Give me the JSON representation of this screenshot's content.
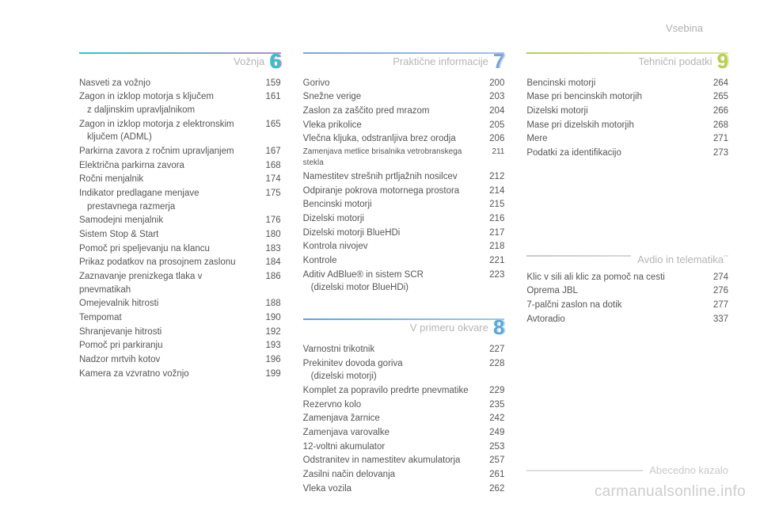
{
  "header": {
    "title": "Vsebina"
  },
  "columns": [
    {
      "sections": [
        {
          "number": "6",
          "title": "Vožnja",
          "rule_gradient": [
            "#2cc5c9",
            "#b48fc6"
          ],
          "num_color": "#2cc5c9",
          "num_shadow": "#b48fc6",
          "entries": [
            {
              "label": "Nasveti za vožnjo",
              "page": "159"
            },
            {
              "label": "Zagon in izklop motorja s ključem",
              "sub": "z daljinskim upravljalnikom",
              "page": "161"
            },
            {
              "label": "Zagon in izklop motorja z elektronskim",
              "sub": "ključem (ADML)",
              "page": "165"
            },
            {
              "label": "Parkirna zavora z ročnim upravljanjem",
              "page": "167"
            },
            {
              "label": "Električna parkirna zavora",
              "page": "168"
            },
            {
              "label": "Ročni menjalnik",
              "page": "174"
            },
            {
              "label": "Indikator predlagane menjave",
              "sub": "prestavnega razmerja",
              "page": "175"
            },
            {
              "label": "Samodejni menjalnik",
              "page": "176"
            },
            {
              "label": "Sistem Stop & Start",
              "page": "180"
            },
            {
              "label": "Pomoč pri speljevanju na klancu",
              "page": "183"
            },
            {
              "label": "Prikaz podatkov na prosojnem zaslonu",
              "page": "184"
            },
            {
              "label": "Zaznavanje prenizkega tlaka v pnevmatikah",
              "page": "186"
            },
            {
              "label": "Omejevalnik hitrosti",
              "page": "188"
            },
            {
              "label": "Tempomat",
              "page": "190"
            },
            {
              "label": "Shranjevanje hitrosti",
              "page": "192"
            },
            {
              "label": "Pomoč pri parkiranju",
              "page": "193"
            },
            {
              "label": "Nadzor mrtvih kotov",
              "page": "196"
            },
            {
              "label": "Kamera za vzvratno vožnjo",
              "page": "199"
            }
          ]
        }
      ]
    },
    {
      "sections": [
        {
          "number": "7",
          "title": "Praktične informacije",
          "rule_gradient": [
            "#7aa6d8",
            "#a7c2e4"
          ],
          "num_color": "#7aa6d8",
          "num_shadow": "#c8d9ef",
          "entries": [
            {
              "label": "Gorivo",
              "page": "200"
            },
            {
              "label": "Snežne verige",
              "page": "203"
            },
            {
              "label": "Zaslon za zaščito pred mrazom",
              "page": "204"
            },
            {
              "label": "Vleka prikolice",
              "page": "205"
            },
            {
              "label": "Vlečna kljuka, odstranljiva brez orodja",
              "page": "206"
            },
            {
              "label": "Zamenjava metlice brisalnika vetrobranskega stekla",
              "page": "211",
              "small": true
            },
            {
              "label": "Namestitev strešnih prtljažnih nosilcev",
              "page": "212"
            },
            {
              "label": "Odpiranje pokrova motornega prostora",
              "page": "214"
            },
            {
              "label": "Bencinski motorji",
              "page": "215"
            },
            {
              "label": "Dizelski motorji",
              "page": "216"
            },
            {
              "label": "Dizelski motorji BlueHDi",
              "page": "217"
            },
            {
              "label": "Kontrola nivojev",
              "page": "218"
            },
            {
              "label": "Kontrole",
              "page": "221"
            },
            {
              "label": "Aditiv AdBlue® in sistem SCR",
              "sub": "(dizelski motor BlueHDi)",
              "page": "223"
            }
          ]
        },
        {
          "number": "8",
          "title": "V primeru okvare",
          "rule_gradient": [
            "#5ea6d6",
            "#9ec9e8"
          ],
          "num_color": "#5ea6d6",
          "num_shadow": "#c3dff0",
          "entries": [
            {
              "label": "Varnostni trikotnik",
              "page": "227"
            },
            {
              "label": "Prekinitev dovoda goriva",
              "sub": "(dizelski motorji)",
              "page": "228"
            },
            {
              "label": "Komplet za popravilo predrte pnevmatike",
              "page": "229"
            },
            {
              "label": "Rezervno kolo",
              "page": "235"
            },
            {
              "label": "Zamenjava žarnice",
              "page": "242"
            },
            {
              "label": "Zamenjava varovalke",
              "page": "249"
            },
            {
              "label": "12-voltni akumulator",
              "page": "253"
            },
            {
              "label": "Odstranitev in namestitev akumulatorja",
              "page": "257"
            },
            {
              "label": "Zasilni način delovanja",
              "page": "261"
            },
            {
              "label": "Vleka vozila",
              "page": "262"
            }
          ]
        }
      ]
    },
    {
      "sections": [
        {
          "number": "9",
          "title": "Tehnični podatki",
          "rule_gradient": [
            "#b7cf52",
            "#d6e3a0"
          ],
          "num_color": "#b7cf52",
          "num_shadow": "#e3edc1",
          "entries": [
            {
              "label": "Bencinski motorji",
              "page": "264"
            },
            {
              "label": "Mase pri bencinskih motorjih",
              "page": "265"
            },
            {
              "label": "Dizelski motorji",
              "page": "266"
            },
            {
              "label": "Mase pri dizelskih motorjih",
              "page": "268"
            },
            {
              "label": "Mere",
              "page": "271"
            },
            {
              "label": "Podatki za identifikacijo",
              "page": "273"
            }
          ]
        },
        {
          "number": "",
          "title": "Avdio in telematika",
          "rule_gradient": [
            "#c9c9c9",
            "#e6e6e6"
          ],
          "num_color": "#c9c9c9",
          "num_shadow": "#eeeeee",
          "spacer_before": 90,
          "entries": [
            {
              "label": "Klic v sili ali klic za pomoč na cesti",
              "page": "274"
            },
            {
              "label": "Oprema JBL",
              "page": "276"
            },
            {
              "label": "7-palčni zaslon na dotik",
              "page": "277"
            },
            {
              "label": "Avtoradio",
              "page": "337"
            }
          ]
        }
      ],
      "index": {
        "title": "Abecedno kazalo",
        "spacer_before": 130
      }
    }
  ],
  "watermark": "carmanualsonline.info"
}
